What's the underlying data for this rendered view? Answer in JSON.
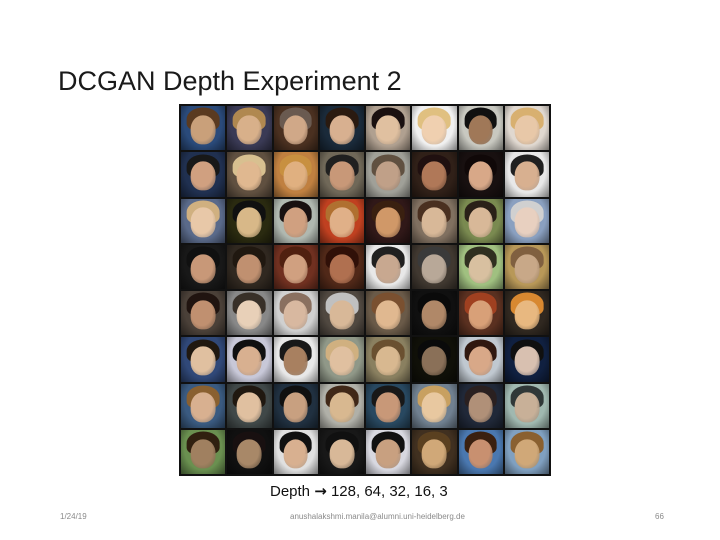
{
  "slide": {
    "title": "DCGAN Depth Experiment 2",
    "caption_prefix": "Depth",
    "caption_arrow": "→",
    "caption_values": "128, 64, 32, 16, 3"
  },
  "footer": {
    "date": "1/24/19",
    "email": "anushalakshmi.manila@alumni.uni-heidelberg.de",
    "page_number": "66"
  },
  "image_grid": {
    "rows": 8,
    "columns": 8,
    "cells": [
      {
        "bg": "#2a4a7a",
        "skin": "#c9a07a",
        "hair": "#5a3a20"
      },
      {
        "bg": "#3a3a55",
        "skin": "#d8b08a",
        "hair": "#b08850"
      },
      {
        "bg": "#4a3020",
        "skin": "#d0a888",
        "hair": "#6a5a50"
      },
      {
        "bg": "#1a2a3a",
        "skin": "#d8b090",
        "hair": "#2a1a10"
      },
      {
        "bg": "#b0a090",
        "skin": "#e0c0a0",
        "hair": "#1a1010"
      },
      {
        "bg": "#f0f0f0",
        "skin": "#f0d0b0",
        "hair": "#e0c080"
      },
      {
        "bg": "#c8c8c0",
        "skin": "#a07858",
        "hair": "#101010"
      },
      {
        "bg": "#e0d8d0",
        "skin": "#e8c8a8",
        "hair": "#d8b070"
      },
      {
        "bg": "#203050",
        "skin": "#d0a080",
        "hair": "#181818"
      },
      {
        "bg": "#605040",
        "skin": "#e0b890",
        "hair": "#d8c090"
      },
      {
        "bg": "#c08040",
        "skin": "#e0b080",
        "hair": "#c89040"
      },
      {
        "bg": "#706858",
        "skin": "#c89878",
        "hair": "#202020"
      },
      {
        "bg": "#a0a098",
        "skin": "#c0a088",
        "hair": "#605040"
      },
      {
        "bg": "#302018",
        "skin": "#b07858",
        "hair": "#201010"
      },
      {
        "bg": "#181010",
        "skin": "#d8a888",
        "hair": "#100808"
      },
      {
        "bg": "#e8e8e8",
        "skin": "#d8b090",
        "hair": "#202020"
      },
      {
        "bg": "#5a6a8a",
        "skin": "#e8c8a8",
        "hair": "#d0b080"
      },
      {
        "bg": "#2a2a10",
        "skin": "#d8b888",
        "hair": "#101010"
      },
      {
        "bg": "#b0b8b0",
        "skin": "#d0a080",
        "hair": "#181010"
      },
      {
        "bg": "#c04020",
        "skin": "#e0b088",
        "hair": "#b07030"
      },
      {
        "bg": "#301818",
        "skin": "#d09868",
        "hair": "#3a2010"
      },
      {
        "bg": "#807060",
        "skin": "#d8b898",
        "hair": "#4a3020"
      },
      {
        "bg": "#7a8a50",
        "skin": "#d8b898",
        "hair": "#2a2018"
      },
      {
        "bg": "#8aa0c0",
        "skin": "#e8d0c0",
        "hair": "#d0d0d0"
      },
      {
        "bg": "#181818",
        "skin": "#c89878",
        "hair": "#101010"
      },
      {
        "bg": "#302820",
        "skin": "#c09070",
        "hair": "#201810"
      },
      {
        "bg": "#703020",
        "skin": "#d0a080",
        "hair": "#502010"
      },
      {
        "bg": "#502818",
        "skin": "#b07050",
        "hair": "#301008"
      },
      {
        "bg": "#e8e8e8",
        "skin": "#c8a890",
        "hair": "#202020"
      },
      {
        "bg": "#403830",
        "skin": "#b8a898",
        "hair": "#3a3a3a"
      },
      {
        "bg": "#a0c080",
        "skin": "#d8c0a0",
        "hair": "#303020"
      },
      {
        "bg": "#b89858",
        "skin": "#c8a888",
        "hair": "#806040"
      },
      {
        "bg": "#4a4038",
        "skin": "#c09070",
        "hair": "#201410"
      },
      {
        "bg": "#888888",
        "skin": "#e8d0b8",
        "hair": "#383028"
      },
      {
        "bg": "#d0d0d0",
        "skin": "#d8b8a0",
        "hair": "#8a7060"
      },
      {
        "bg": "#504840",
        "skin": "#d8b898",
        "hair": "#c0c0c0"
      },
      {
        "bg": "#6a5a48",
        "skin": "#e0b890",
        "hair": "#7a5030"
      },
      {
        "bg": "#101010",
        "skin": "#b08868",
        "hair": "#0a0a0a"
      },
      {
        "bg": "#5a3020",
        "skin": "#d8a078",
        "hair": "#a04020"
      },
      {
        "bg": "#302820",
        "skin": "#e8b880",
        "hair": "#d88830"
      },
      {
        "bg": "#304878",
        "skin": "#e0c0a0",
        "hair": "#201810"
      },
      {
        "bg": "#c8c8d8",
        "skin": "#d8b090",
        "hair": "#101010"
      },
      {
        "bg": "#e8e8e8",
        "skin": "#a88060",
        "hair": "#181818"
      },
      {
        "bg": "#909888",
        "skin": "#e0c0a0",
        "hair": "#d0b080"
      },
      {
        "bg": "#8a8060",
        "skin": "#d8b890",
        "hair": "#6a5030"
      },
      {
        "bg": "#101008",
        "skin": "#8a7058",
        "hair": "#0a0a0a"
      },
      {
        "bg": "#c0c8d0",
        "skin": "#d8a888",
        "hair": "#301810"
      },
      {
        "bg": "#102040",
        "skin": "#d8c0b0",
        "hair": "#101010"
      },
      {
        "bg": "#3a5a80",
        "skin": "#d8b090",
        "hair": "#8a6030"
      },
      {
        "bg": "#404848",
        "skin": "#e0c0a0",
        "hair": "#201810"
      },
      {
        "bg": "#203040",
        "skin": "#c8a080",
        "hair": "#101010"
      },
      {
        "bg": "#b0b0a8",
        "skin": "#d8b890",
        "hair": "#402818"
      },
      {
        "bg": "#284860",
        "skin": "#c89878",
        "hair": "#181818"
      },
      {
        "bg": "#708090",
        "skin": "#e8c8a0",
        "hair": "#c8a060"
      },
      {
        "bg": "#202838",
        "skin": "#b09078",
        "hair": "#2a2020"
      },
      {
        "bg": "#a0b8b0",
        "skin": "#c8b098",
        "hair": "#303838"
      },
      {
        "bg": "#6a9050",
        "skin": "#a08060",
        "hair": "#302010"
      },
      {
        "bg": "#101010",
        "skin": "#a88868",
        "hair": "#181010"
      },
      {
        "bg": "#e0e0e0",
        "skin": "#d8b090",
        "hair": "#101010"
      },
      {
        "bg": "#181818",
        "skin": "#d8b898",
        "hair": "#101010"
      },
      {
        "bg": "#d8d8e0",
        "skin": "#c8a080",
        "hair": "#101010"
      },
      {
        "bg": "#403020",
        "skin": "#d0a878",
        "hair": "#5a4020"
      },
      {
        "bg": "#4a78b0",
        "skin": "#c89070",
        "hair": "#3a2010"
      },
      {
        "bg": "#80a0c0",
        "skin": "#d0a878",
        "hair": "#8a6030"
      }
    ]
  }
}
